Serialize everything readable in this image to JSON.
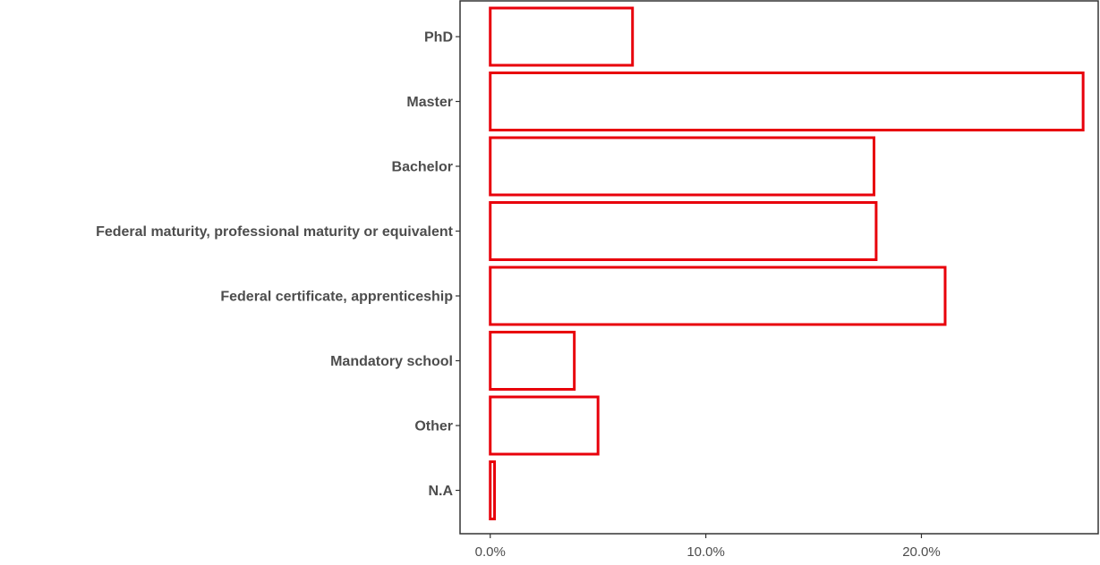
{
  "chart_data": {
    "type": "bar",
    "orientation": "horizontal",
    "title": "",
    "xlabel": "",
    "ylabel": "",
    "categories": [
      "PhD",
      "Master",
      "Bachelor",
      "Federal maturity, professional maturity or equivalent",
      "Federal certificate, apprenticeship",
      "Mandatory school",
      "Other",
      "N.A"
    ],
    "values": [
      6.6,
      27.5,
      17.8,
      17.9,
      21.1,
      3.9,
      5.0,
      0.2
    ],
    "unit": "%",
    "xlim": [
      -1.4,
      28.2
    ],
    "x_ticks": [
      0,
      10,
      20
    ],
    "x_tick_labels": [
      "0.0%",
      "10.0%",
      "20.0%"
    ],
    "bar_style": {
      "fill": "#ffffff",
      "stroke": "#e8000b"
    },
    "grid": false,
    "legend": "none",
    "panel_border": true
  }
}
